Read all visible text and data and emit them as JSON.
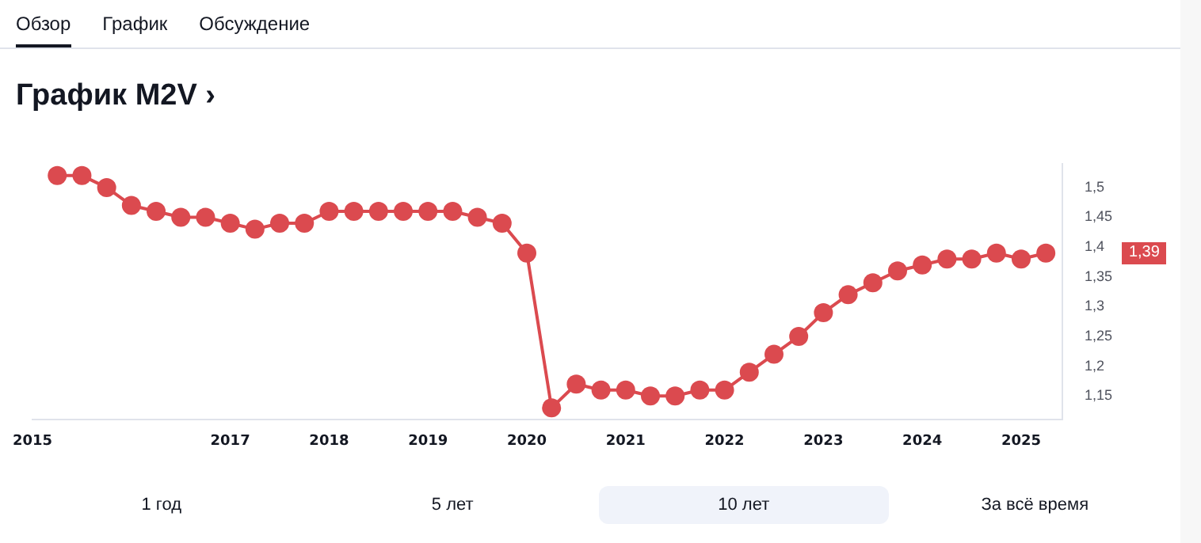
{
  "chart_data": {
    "type": "line",
    "title": "График M2V ›",
    "x": [
      "2015-04",
      "2015-07",
      "2015-10",
      "2016-01",
      "2016-04",
      "2016-07",
      "2016-10",
      "2017-01",
      "2017-04",
      "2017-07",
      "2017-10",
      "2018-01",
      "2018-04",
      "2018-07",
      "2018-10",
      "2019-01",
      "2019-04",
      "2019-07",
      "2019-10",
      "2020-01",
      "2020-04",
      "2020-07",
      "2020-10",
      "2021-01",
      "2021-04",
      "2021-07",
      "2021-10",
      "2022-01",
      "2022-04",
      "2022-07",
      "2022-10",
      "2023-01",
      "2023-04",
      "2023-07",
      "2023-10",
      "2024-01",
      "2024-04",
      "2024-07",
      "2024-10",
      "2025-01",
      "2025-04"
    ],
    "series": [
      {
        "color": "#db4a4f",
        "values": [
          1.52,
          1.52,
          1.5,
          1.47,
          1.46,
          1.45,
          1.45,
          1.44,
          1.43,
          1.44,
          1.44,
          1.46,
          1.46,
          1.46,
          1.46,
          1.46,
          1.46,
          1.45,
          1.44,
          1.39,
          1.13,
          1.17,
          1.16,
          1.16,
          1.15,
          1.15,
          1.16,
          1.16,
          1.19,
          1.22,
          1.25,
          1.29,
          1.32,
          1.34,
          1.36,
          1.37,
          1.38,
          1.38,
          1.39,
          1.38,
          1.39
        ]
      }
    ],
    "xlim": [
      "2015-01",
      "2025-06"
    ],
    "xticks": [
      "2015",
      "2017",
      "2018",
      "2019",
      "2020",
      "2021",
      "2022",
      "2023",
      "2024",
      "2025"
    ],
    "ylim": [
      1.11,
      1.54
    ],
    "yticks": [
      {
        "value": 1.15,
        "label": "1,15"
      },
      {
        "value": 1.2,
        "label": "1,2"
      },
      {
        "value": 1.25,
        "label": "1,25"
      },
      {
        "value": 1.3,
        "label": "1,3"
      },
      {
        "value": 1.35,
        "label": "1,35"
      },
      {
        "value": 1.4,
        "label": "1,4"
      },
      {
        "value": 1.45,
        "label": "1,45"
      },
      {
        "value": 1.5,
        "label": "1,5"
      }
    ],
    "grid": false,
    "legend": false,
    "marker": "circle",
    "line_style": "solid",
    "annotations": [
      "Обзор",
      "График",
      "Обсуждение",
      "1 год",
      "5 лет",
      "10 лет",
      "За всё время",
      "1,39"
    ]
  }
}
